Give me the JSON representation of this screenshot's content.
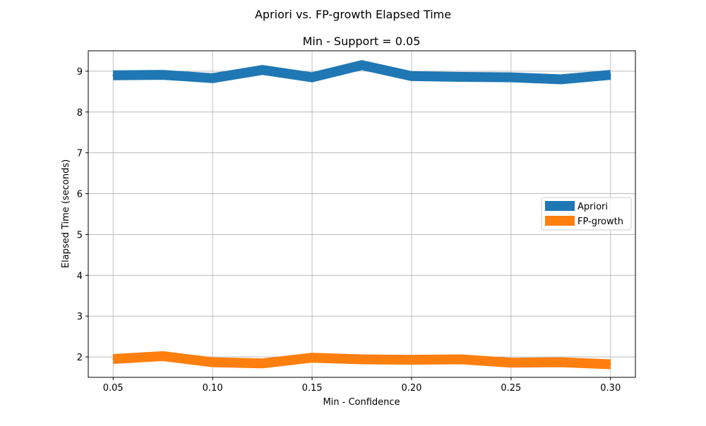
{
  "figure": {
    "suptitle": "Apriori vs. FP-growth Elapsed Time"
  },
  "chart_data": {
    "type": "line",
    "title": "Min - Support = 0.05",
    "xlabel": "Min -  Confidence",
    "ylabel": "Elapsed Time (seconds)",
    "xlim": [
      0.0375,
      0.3125
    ],
    "ylim": [
      1.5,
      9.5
    ],
    "xticks": [
      "0.05",
      "0.10",
      "0.15",
      "0.20",
      "0.25",
      "0.30"
    ],
    "yticks": [
      "2",
      "3",
      "4",
      "5",
      "6",
      "7",
      "8",
      "9"
    ],
    "grid": true,
    "legend_position": "center-right",
    "x": [
      0.05,
      0.075,
      0.1,
      0.125,
      0.15,
      0.175,
      0.2,
      0.225,
      0.25,
      0.275,
      0.3
    ],
    "series": [
      {
        "name": "Apriori",
        "color": "#1f77b4",
        "values": [
          8.9,
          8.91,
          8.83,
          9.03,
          8.85,
          9.15,
          8.88,
          8.86,
          8.85,
          8.8,
          8.91
        ]
      },
      {
        "name": "FP-growth",
        "color": "#ff7f0e",
        "values": [
          1.95,
          2.02,
          1.87,
          1.84,
          1.98,
          1.94,
          1.93,
          1.94,
          1.86,
          1.87,
          1.82
        ]
      }
    ]
  }
}
